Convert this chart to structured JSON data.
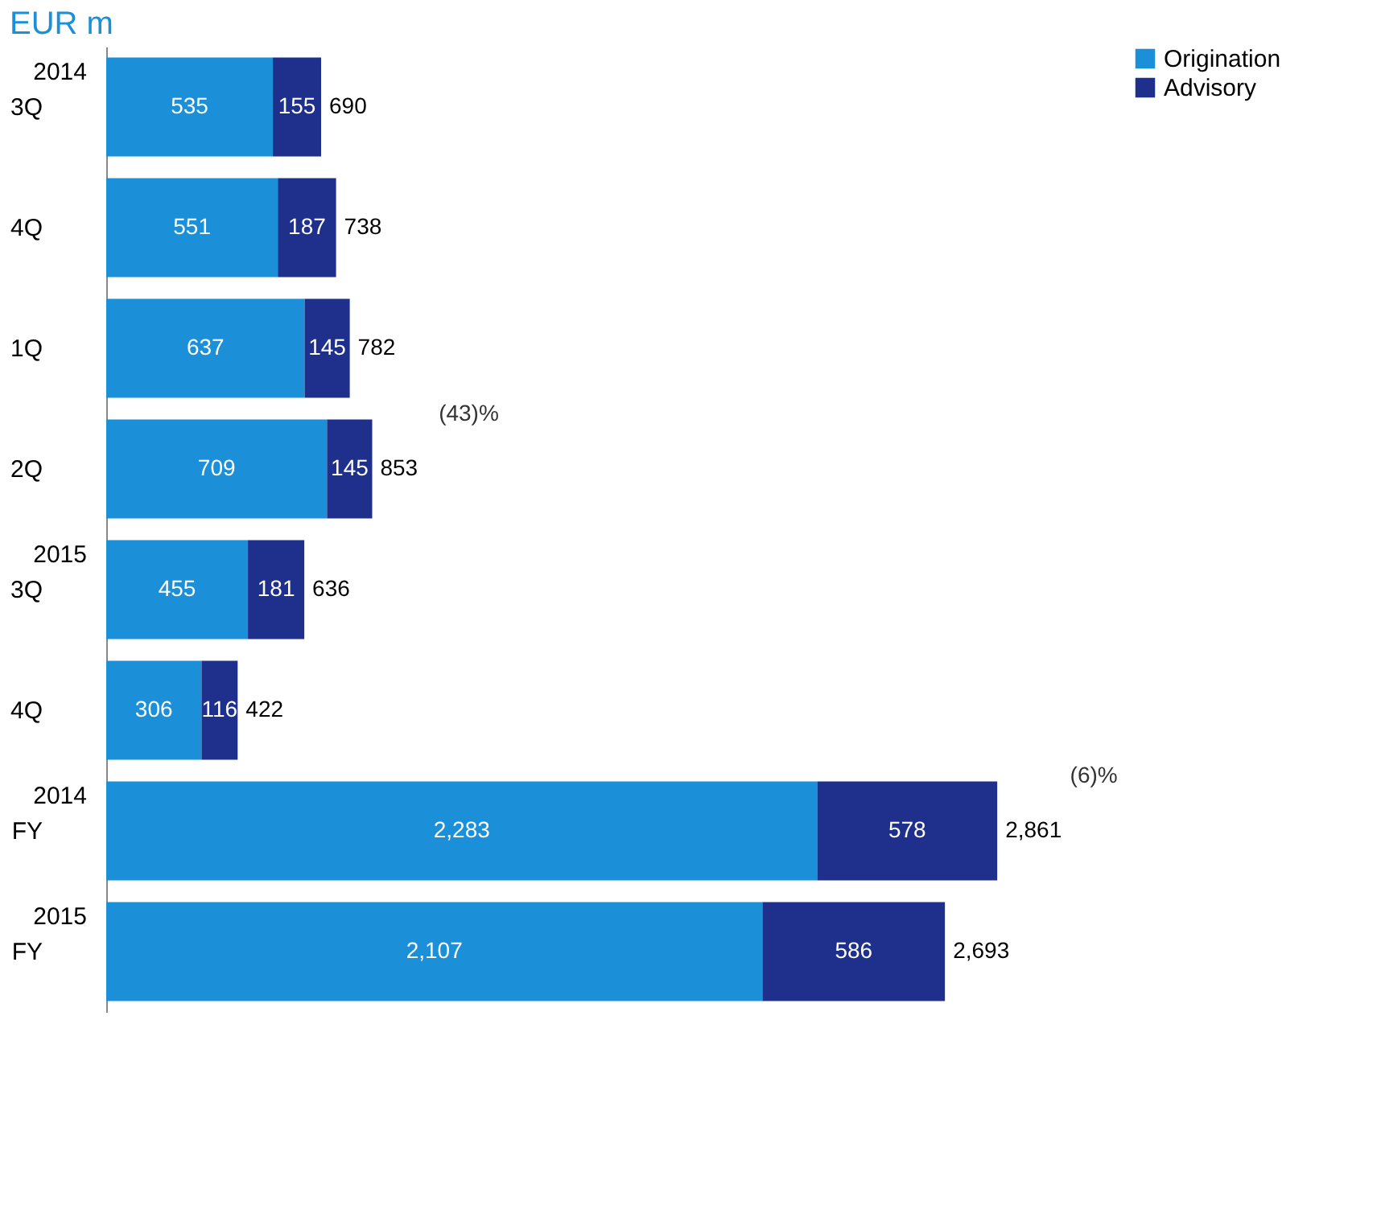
{
  "chart_data": {
    "type": "bar",
    "orientation": "horizontal",
    "stacked": true,
    "title": "EUR m",
    "categories": [
      "3Q",
      "4Q",
      "1Q",
      "2Q",
      "3Q",
      "4Q",
      "FY",
      "FY"
    ],
    "series": [
      {
        "name": "Origination",
        "color": "#1b8fd8",
        "values": [
          535,
          551,
          637,
          709,
          455,
          306,
          2283,
          2107
        ],
        "value_labels": [
          "535",
          "551",
          "637",
          "709",
          "455",
          "306",
          "2,283",
          "2,107"
        ]
      },
      {
        "name": "Advisory",
        "color": "#1e2f8c",
        "values": [
          155,
          187,
          145,
          145,
          181,
          116,
          578,
          586
        ],
        "value_labels": [
          "155",
          "187",
          "145",
          "145",
          "181",
          "116",
          "578",
          "586"
        ]
      }
    ],
    "totals": [
      "690",
      "738",
      "782",
      "853",
      "636",
      "422",
      "2,861",
      "2,693"
    ],
    "legend": "right",
    "grid": false,
    "annotations": [
      "2014",
      "2015",
      "2014",
      "2015",
      "(43)%",
      "(6)%"
    ]
  }
}
